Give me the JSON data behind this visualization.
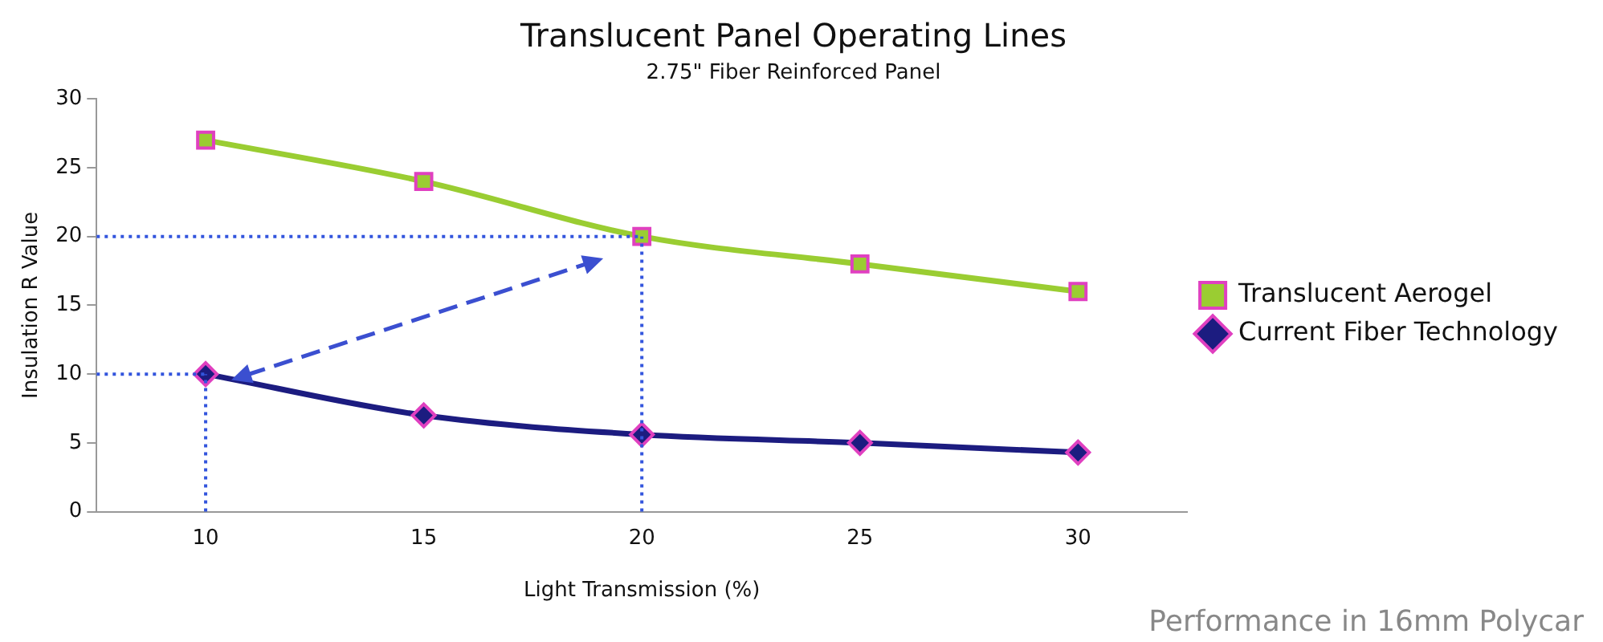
{
  "chart_data": {
    "type": "line",
    "title": "Translucent Panel Operating Lines",
    "subtitle": "2.75\" Fiber Reinforced Panel",
    "xlabel": "Light Transmission (%)",
    "ylabel": "Insulation R Value",
    "categories": [
      "10",
      "15",
      "20",
      "25",
      "30"
    ],
    "series": [
      {
        "name": "Translucent Aerogel",
        "color": "#9acd32",
        "marker": "square",
        "values": [
          27,
          24,
          20,
          18,
          16
        ]
      },
      {
        "name": "Current Fiber Technology",
        "color": "#1c1c80",
        "marker": "diamond",
        "values": [
          10,
          7,
          5.6,
          5,
          4.3
        ]
      }
    ],
    "ylim": [
      0,
      30
    ],
    "yticks": [
      0,
      5,
      10,
      15,
      20,
      25,
      30
    ],
    "grid": false,
    "legend": "right",
    "line_style": "solid",
    "ref_lines": [
      {
        "axis": "y",
        "value": 20,
        "color": "#3355dd",
        "line_style": "dotted"
      },
      {
        "axis": "x",
        "value": "20",
        "color": "#3355dd",
        "line_style": "dotted"
      },
      {
        "axis": "y",
        "value": 10,
        "color": "#3355dd",
        "line_style": "dotted"
      },
      {
        "axis": "x",
        "value": "10",
        "color": "#3355dd",
        "line_style": "dotted"
      }
    ],
    "annotations": [
      "Performance in 16mm Polycar"
    ]
  }
}
